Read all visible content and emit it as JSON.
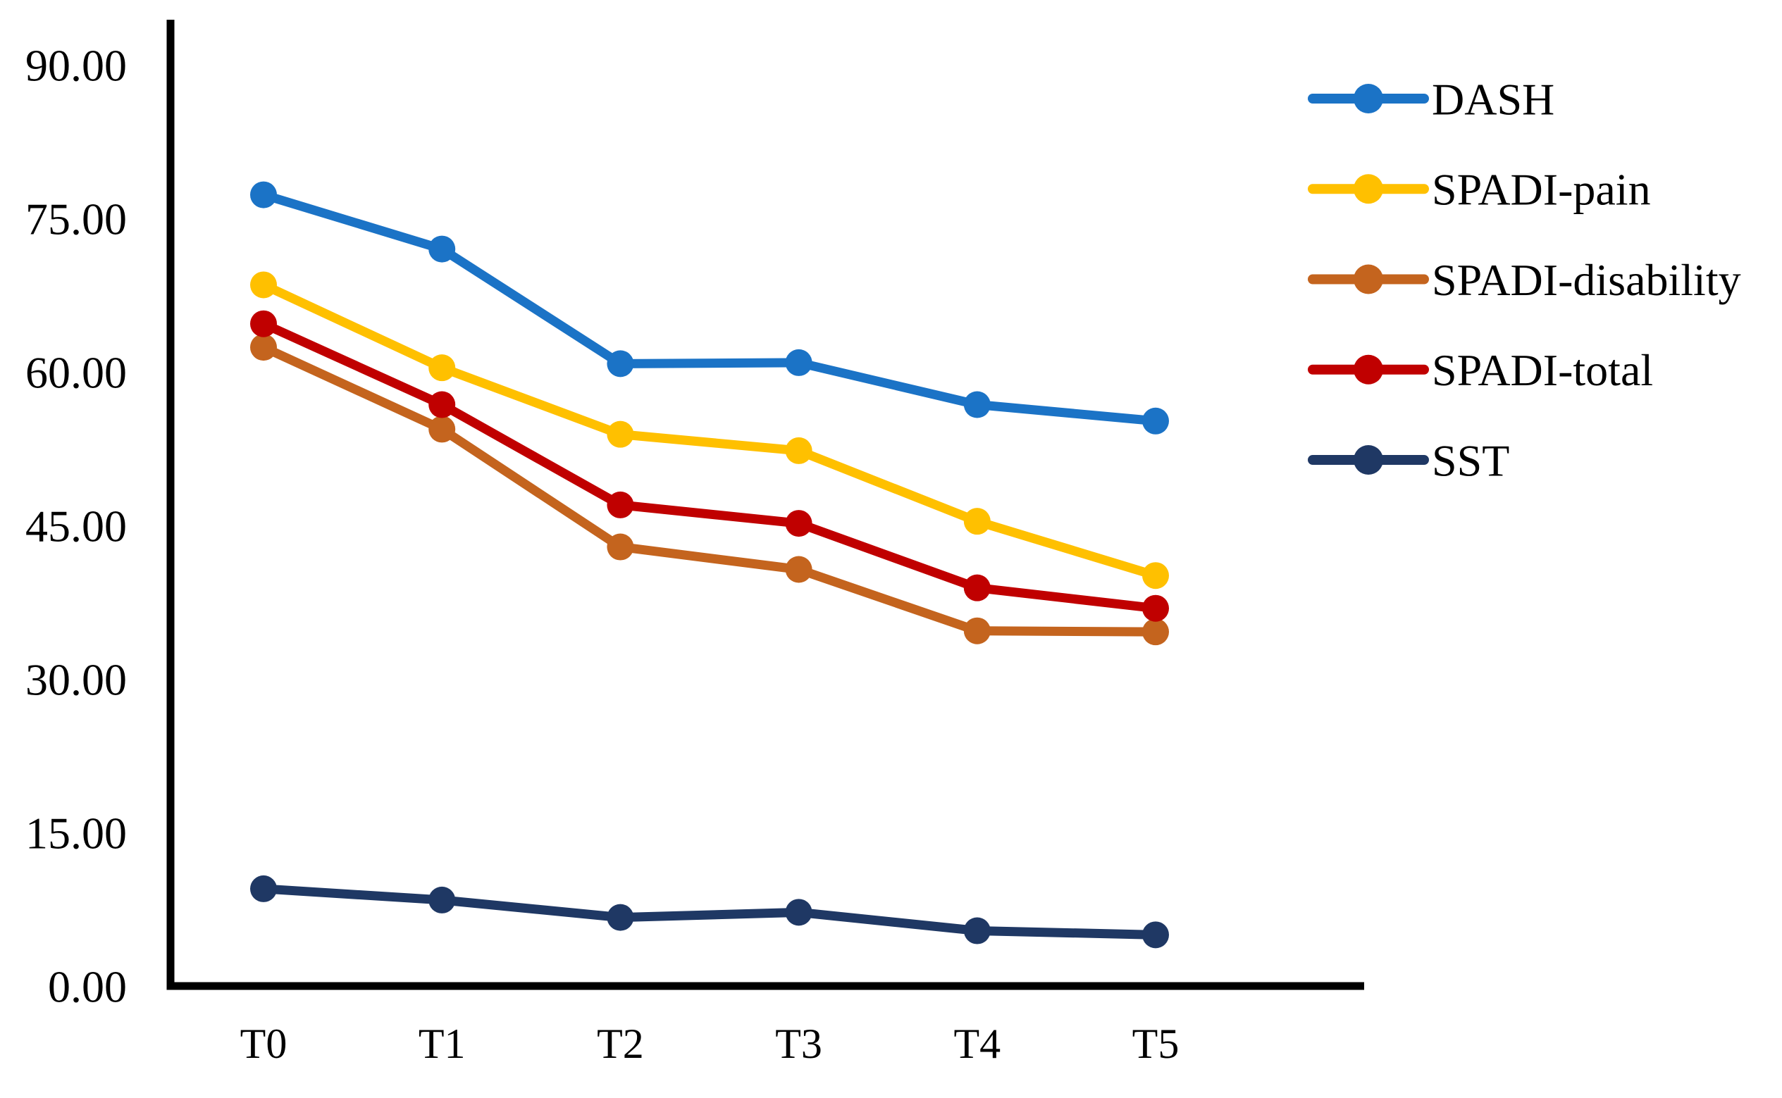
{
  "figure": {
    "background": "#FFFFFF",
    "text_color": "#000000",
    "axis_color": "#000000"
  },
  "chart_data": {
    "type": "line",
    "title": "",
    "xlabel": "",
    "ylabel": "",
    "grid": false,
    "legend_position": "right",
    "categories": [
      "T0",
      "T1",
      "T2",
      "T3",
      "T4",
      "T5"
    ],
    "y_axis": {
      "min": 0,
      "max": 90,
      "tick_step": 15,
      "tick_labels_top_down": [
        "90.00",
        "75.00",
        "60.00",
        "45.00",
        "30.00",
        "15.00",
        "0.00"
      ]
    },
    "series": [
      {
        "name": "DASH",
        "color": "#1B73C6",
        "values": [
          77.3,
          72.0,
          60.8,
          60.9,
          56.8,
          55.2
        ]
      },
      {
        "name": "SPADI-pain",
        "color": "#FFC000",
        "values": [
          68.5,
          60.4,
          53.9,
          52.3,
          45.4,
          40.1
        ]
      },
      {
        "name": "SPADI-disability",
        "color": "#C4641E",
        "values": [
          62.4,
          54.4,
          42.9,
          40.7,
          34.7,
          34.6
        ]
      },
      {
        "name": "SPADI-total",
        "color": "#C00000",
        "values": [
          64.7,
          56.8,
          47.0,
          45.2,
          38.9,
          36.9
        ]
      },
      {
        "name": "SST",
        "color": "#1F3864",
        "values": [
          9.5,
          8.4,
          6.7,
          7.2,
          5.4,
          5.0
        ]
      }
    ]
  }
}
